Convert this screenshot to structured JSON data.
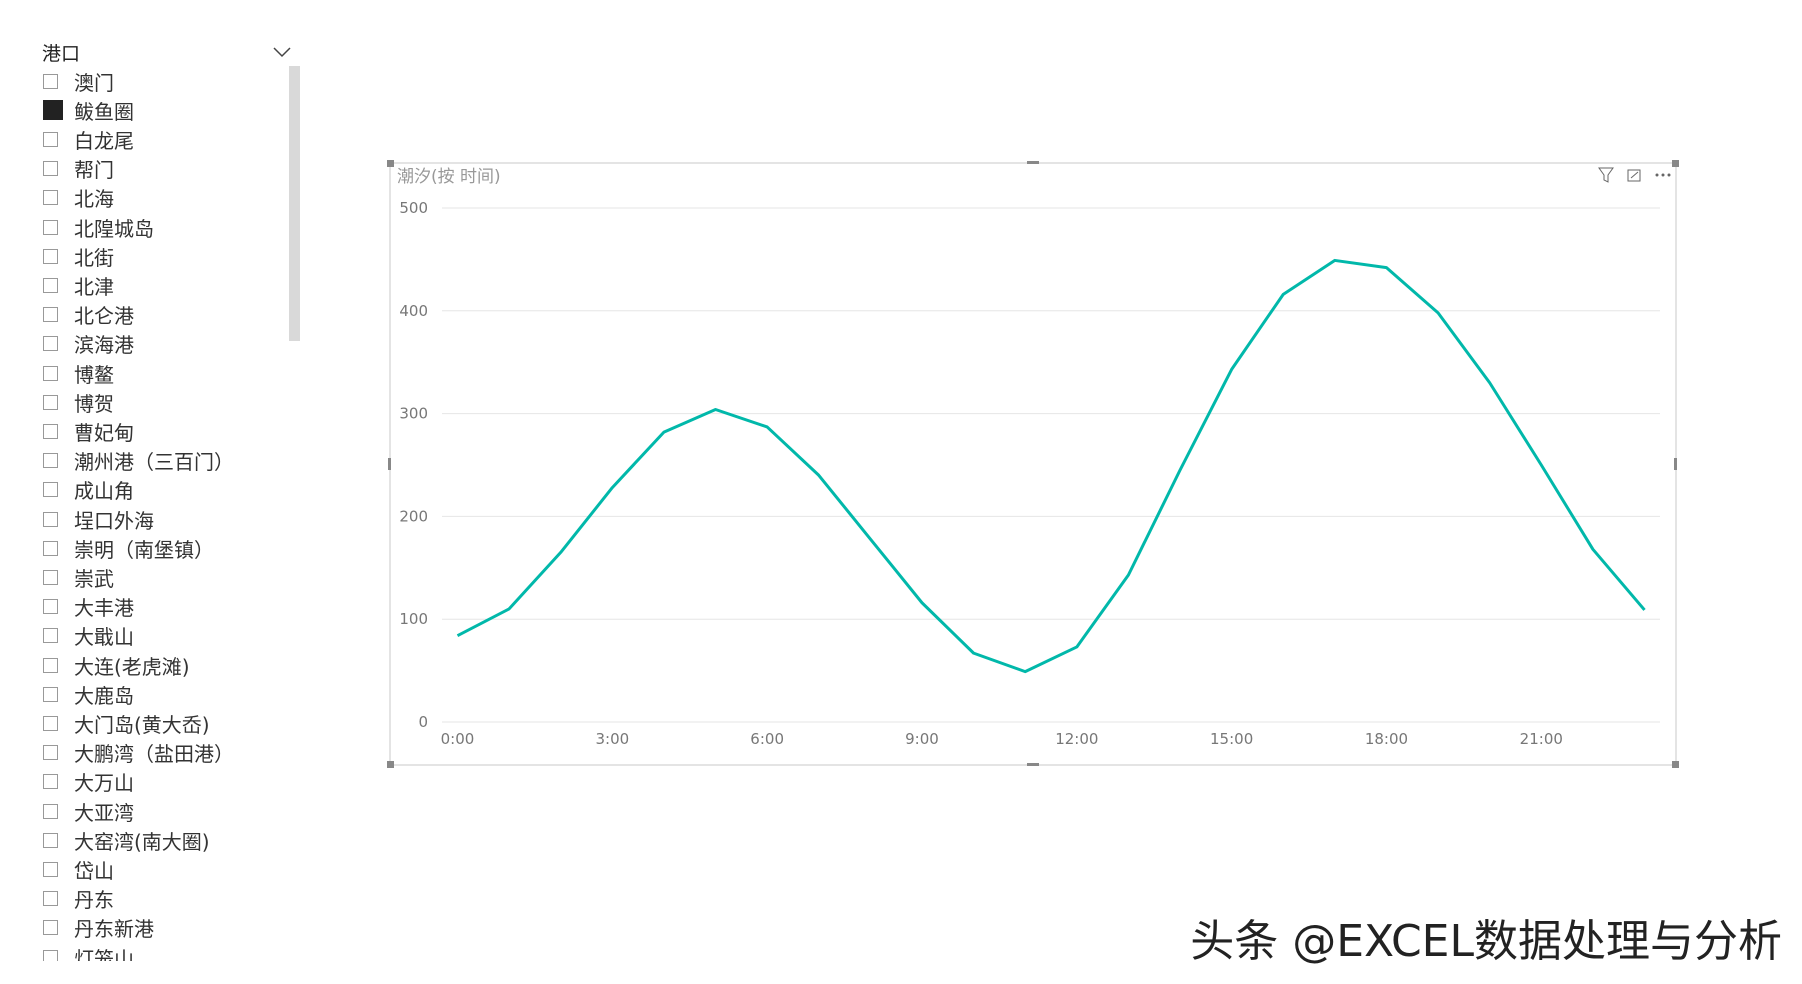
{
  "slicer": {
    "title": "港口",
    "items": [
      {
        "label": "澳门",
        "checked": false
      },
      {
        "label": "鲅鱼圈",
        "checked": true
      },
      {
        "label": "白龙尾",
        "checked": false
      },
      {
        "label": "帮门",
        "checked": false
      },
      {
        "label": "北海",
        "checked": false
      },
      {
        "label": "北隍城岛",
        "checked": false
      },
      {
        "label": "北街",
        "checked": false
      },
      {
        "label": "北津",
        "checked": false
      },
      {
        "label": "北仑港",
        "checked": false
      },
      {
        "label": "滨海港",
        "checked": false
      },
      {
        "label": "博鳌",
        "checked": false
      },
      {
        "label": "博贺",
        "checked": false
      },
      {
        "label": "曹妃甸",
        "checked": false
      },
      {
        "label": "潮州港（三百门）",
        "checked": false
      },
      {
        "label": "成山角",
        "checked": false
      },
      {
        "label": "埕口外海",
        "checked": false
      },
      {
        "label": "崇明（南堡镇）",
        "checked": false
      },
      {
        "label": "崇武",
        "checked": false
      },
      {
        "label": "大丰港",
        "checked": false
      },
      {
        "label": "大戢山",
        "checked": false
      },
      {
        "label": "大连(老虎滩)",
        "checked": false
      },
      {
        "label": "大鹿岛",
        "checked": false
      },
      {
        "label": "大门岛(黄大岙)",
        "checked": false
      },
      {
        "label": "大鹏湾（盐田港）",
        "checked": false
      },
      {
        "label": "大万山",
        "checked": false
      },
      {
        "label": "大亚湾",
        "checked": false
      },
      {
        "label": "大窑湾(南大圈)",
        "checked": false
      },
      {
        "label": "岱山",
        "checked": false
      },
      {
        "label": "丹东",
        "checked": false
      },
      {
        "label": "丹东新港",
        "checked": false
      },
      {
        "label": "灯笼山",
        "checked": false
      }
    ]
  },
  "chart_data": {
    "type": "line",
    "title": "潮汐(按 时间)",
    "color": "#01b8aa",
    "grid": true,
    "x": [
      0,
      1,
      2,
      3,
      4,
      5,
      6,
      7,
      8,
      9,
      10,
      11,
      12,
      13,
      14,
      15,
      16,
      17,
      18,
      19,
      20,
      21,
      22,
      23
    ],
    "values": [
      84,
      110,
      165,
      228,
      282,
      304,
      287,
      240,
      178,
      116,
      67,
      49,
      73,
      143,
      245,
      343,
      416,
      449,
      442,
      398,
      330,
      250,
      168,
      109
    ],
    "xlim": [
      -0.3,
      23.3
    ],
    "xticks": [
      {
        "value": 0,
        "label": "0:00"
      },
      {
        "value": 3,
        "label": "3:00"
      },
      {
        "value": 6,
        "label": "6:00"
      },
      {
        "value": 9,
        "label": "9:00"
      },
      {
        "value": 12,
        "label": "12:00"
      },
      {
        "value": 15,
        "label": "15:00"
      },
      {
        "value": 18,
        "label": "18:00"
      },
      {
        "value": 21,
        "label": "21:00"
      }
    ],
    "ylim": [
      0,
      500
    ],
    "yticks": [
      0,
      100,
      200,
      300,
      400,
      500
    ]
  },
  "watermark": "头条 @EXCEL数据处理与分析"
}
